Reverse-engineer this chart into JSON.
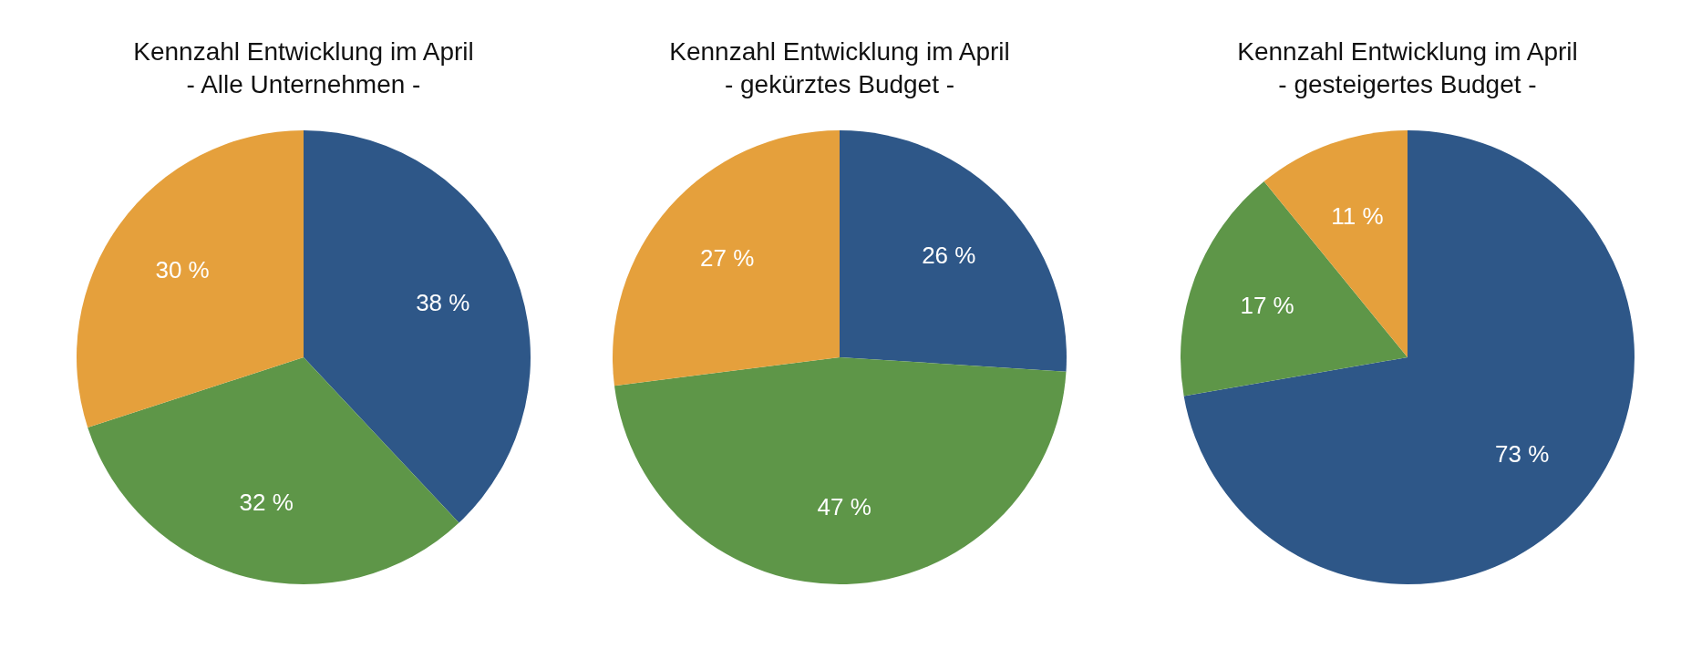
{
  "chart_data": [
    {
      "type": "pie",
      "title": "Kennzahl Entwicklung im April",
      "subtitle": "- Alle Unternehmen -",
      "categories": [
        null,
        null,
        null
      ],
      "values": [
        38,
        32,
        30
      ],
      "colors": [
        "#2e5788",
        "#5e9648",
        "#e5a03c"
      ],
      "value_labels": [
        "38 %",
        "32 %",
        "30 %"
      ]
    },
    {
      "type": "pie",
      "title": "Kennzahl Entwicklung im April",
      "subtitle": "- gekürztes Budget -",
      "categories": [
        null,
        null,
        null
      ],
      "values": [
        26,
        47,
        27
      ],
      "colors": [
        "#2e5788",
        "#5e9648",
        "#e5a03c"
      ],
      "value_labels": [
        "26 %",
        "47 %",
        "27 %"
      ]
    },
    {
      "type": "pie",
      "title": "Kennzahl Entwicklung im April",
      "subtitle": "- gesteigertes Budget -",
      "categories": [
        null,
        null,
        null
      ],
      "values": [
        73,
        17,
        11
      ],
      "colors": [
        "#2e5788",
        "#5e9648",
        "#e5a03c"
      ],
      "value_labels": [
        "73 %",
        "17 %",
        "11 %"
      ]
    }
  ]
}
